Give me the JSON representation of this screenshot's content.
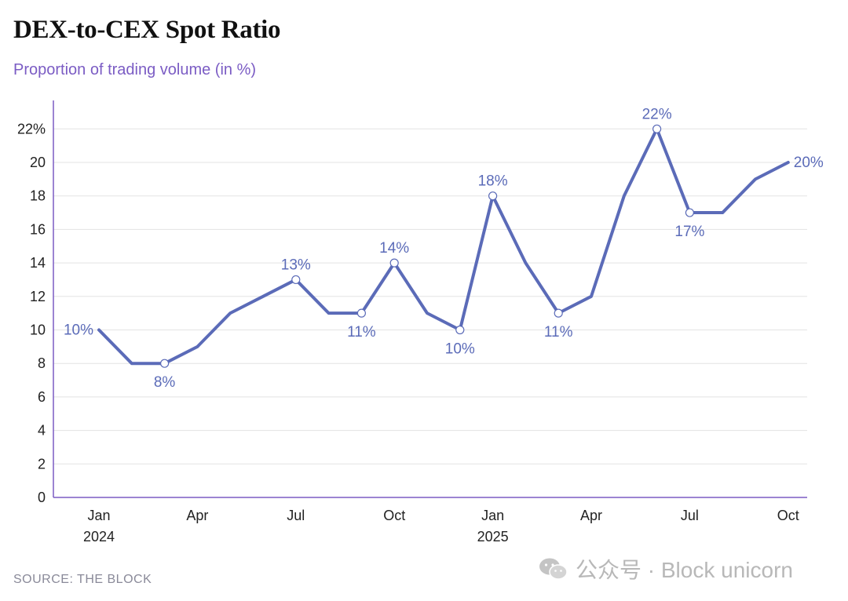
{
  "header": {
    "title": "DEX-to-CEX Spot Ratio",
    "subtitle": "Proportion of trading volume (in %)"
  },
  "footer": {
    "source": "SOURCE: THE BLOCK",
    "watermark": "公众号 · Block unicorn",
    "watermark_icon": "wechat-icon"
  },
  "colors": {
    "line": "#5b6bb8",
    "axis": "#7b5cc4",
    "grid": "#e3e3e3",
    "subtitle": "#7b5cc4"
  },
  "chart_data": {
    "type": "line",
    "title": "DEX-to-CEX Spot Ratio",
    "subtitle": "Proportion of trading volume (in %)",
    "x": [
      "2024-01",
      "2024-02",
      "2024-03",
      "2024-04",
      "2024-05",
      "2024-06",
      "2024-07",
      "2024-08",
      "2024-09",
      "2024-10",
      "2024-11",
      "2024-12",
      "2025-01",
      "2025-02",
      "2025-03",
      "2025-04",
      "2025-05",
      "2025-06",
      "2025-07",
      "2025-08",
      "2025-09",
      "2025-10"
    ],
    "series": [
      {
        "values": [
          10,
          8,
          8,
          9,
          11,
          12,
          13,
          11,
          11,
          14,
          11,
          10,
          18,
          14,
          11,
          12,
          18,
          22,
          17,
          17,
          19,
          20
        ]
      }
    ],
    "ylim": [
      0,
      22
    ],
    "y_ticks": [
      "0",
      "2",
      "4",
      "6",
      "8",
      "10",
      "12",
      "14",
      "16",
      "18",
      "20",
      "22%"
    ],
    "y_tick_values": [
      0,
      2,
      4,
      6,
      8,
      10,
      12,
      14,
      16,
      18,
      20,
      22
    ],
    "x_ticks": [
      {
        "index": 0,
        "label": "Jan",
        "sublabel": "2024"
      },
      {
        "index": 3,
        "label": "Apr",
        "sublabel": ""
      },
      {
        "index": 6,
        "label": "Jul",
        "sublabel": ""
      },
      {
        "index": 9,
        "label": "Oct",
        "sublabel": ""
      },
      {
        "index": 12,
        "label": "Jan",
        "sublabel": "2025"
      },
      {
        "index": 15,
        "label": "Apr",
        "sublabel": ""
      },
      {
        "index": 18,
        "label": "Jul",
        "sublabel": ""
      },
      {
        "index": 21,
        "label": "Oct",
        "sublabel": ""
      }
    ],
    "annotations": [
      {
        "index": 0,
        "text": "10%",
        "marker": false,
        "place": "left"
      },
      {
        "index": 2,
        "text": "8%",
        "marker": true,
        "place": "below"
      },
      {
        "index": 6,
        "text": "13%",
        "marker": true,
        "place": "above"
      },
      {
        "index": 8,
        "text": "11%",
        "marker": true,
        "place": "below"
      },
      {
        "index": 9,
        "text": "14%",
        "marker": true,
        "place": "above"
      },
      {
        "index": 11,
        "text": "10%",
        "marker": true,
        "place": "below"
      },
      {
        "index": 12,
        "text": "18%",
        "marker": true,
        "place": "above"
      },
      {
        "index": 14,
        "text": "11%",
        "marker": true,
        "place": "below"
      },
      {
        "index": 17,
        "text": "22%",
        "marker": true,
        "place": "above"
      },
      {
        "index": 18,
        "text": "17%",
        "marker": true,
        "place": "below"
      },
      {
        "index": 21,
        "text": "20%",
        "marker": false,
        "place": "right"
      }
    ],
    "grid": true,
    "legend": "none"
  }
}
